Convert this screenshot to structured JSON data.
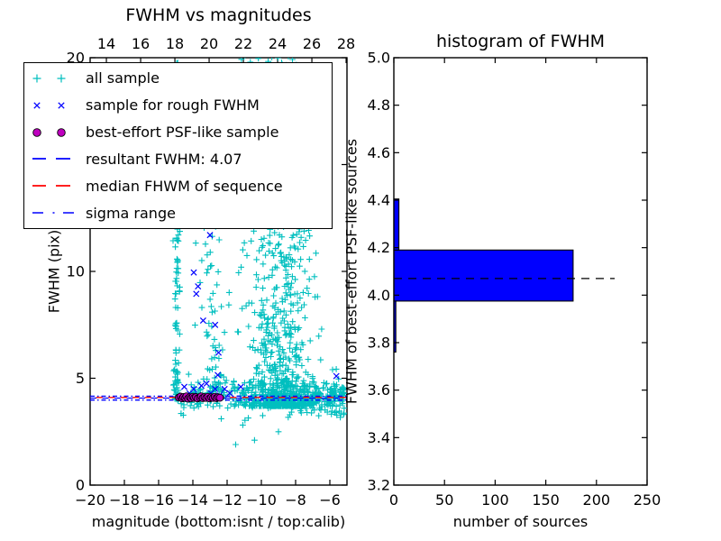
{
  "figure": {
    "background": "#ffffff"
  },
  "palette": {
    "cyan": "#00bfbf",
    "blue": "#0000ff",
    "magenta": "#bf00bf",
    "red": "#ff0000",
    "black": "#000000",
    "bar_fill": "#0000ff"
  },
  "chart_data": [
    {
      "type": "scatter",
      "title": "FWHM vs magnitudes",
      "xlabel": "magnitude (bottom:isnt / top:calib)",
      "ylabel": "FWHM (pix)",
      "xlim": [
        -20,
        -5
      ],
      "ylim": [
        0,
        20
      ],
      "x_bottom_ticks": [
        -20,
        -18,
        -16,
        -14,
        -12,
        -10,
        -8,
        -6
      ],
      "y_ticks": [
        0,
        5,
        10,
        15,
        20
      ],
      "top_axis": {
        "name": "calib magnitude",
        "xlim": [
          13.05,
          28.05
        ],
        "ticks": [
          14,
          16,
          18,
          20,
          22,
          24,
          26,
          28
        ]
      },
      "grid": false,
      "series": [
        {
          "name": "all sample",
          "marker": "plus",
          "color": "#00bfbf",
          "clusters": [
            {
              "n": 110,
              "x": {
                "dist": "normal",
                "mu": -14.95,
                "sigma": 0.1
              },
              "y": {
                "dist": "power",
                "min": 3.95,
                "max": 20,
                "exp": 1.7
              }
            },
            {
              "n": 60,
              "x": {
                "dist": "normal",
                "mu": -13.0,
                "sigma": 0.45
              },
              "y": {
                "dist": "power",
                "min": 4.2,
                "max": 13,
                "exp": 1.4
              }
            },
            {
              "n": 380,
              "x": {
                "dist": "rpower",
                "min": -15.05,
                "max": -5.15,
                "exp": 1.4
              },
              "y": {
                "dist": "normal",
                "mu": 4.2,
                "sigma": 0.38
              }
            },
            {
              "n": 780,
              "x": {
                "dist": "normal",
                "mu": -8.8,
                "sigma": 1.0
              },
              "y": {
                "dist": "power",
                "min": 3.7,
                "max": 20,
                "exp": 2.8
              }
            },
            {
              "n": 45,
              "x": {
                "dist": "normal",
                "mu": -9.2,
                "sigma": 1.4
              },
              "y": {
                "dist": "uniform",
                "min": 11,
                "max": 19.5
              }
            },
            {
              "n": 22,
              "x": {
                "dist": "uniform",
                "min": -11.3,
                "max": -7.8
              },
              "y": {
                "dist": "uniform",
                "min": 19.4,
                "max": 20.4
              }
            },
            {
              "n": 20,
              "x": {
                "dist": "uniform",
                "min": -11.6,
                "max": -5.3
              },
              "y": {
                "dist": "uniform",
                "min": 2.8,
                "max": 3.75
              }
            }
          ],
          "extra_points": [
            [
              -11.5,
              1.9
            ],
            [
              -10.4,
              2.1
            ],
            [
              -9.0,
              2.5
            ]
          ]
        },
        {
          "name": "sample for rough FWHM",
          "marker": "x",
          "color": "#0000ff",
          "points": [
            [
              -14.5,
              4.6
            ],
            [
              -14.2,
              4.3
            ],
            [
              -13.95,
              4.5
            ],
            [
              -13.7,
              4.2
            ],
            [
              -13.5,
              4.65
            ],
            [
              -13.2,
              4.75
            ],
            [
              -12.95,
              4.3
            ],
            [
              -12.7,
              4.5
            ],
            [
              -12.45,
              4.2
            ],
            [
              -12.15,
              4.5
            ],
            [
              -11.85,
              4.3
            ],
            [
              -11.2,
              4.6
            ],
            [
              -12.55,
              5.15
            ],
            [
              -12.5,
              6.2
            ],
            [
              -13.4,
              7.7
            ],
            [
              -12.7,
              7.5
            ],
            [
              -13.8,
              8.95
            ],
            [
              -13.95,
              9.95
            ],
            [
              -13.7,
              9.3
            ],
            [
              -13.0,
              11.7
            ],
            [
              -5.62,
              5.1
            ]
          ]
        },
        {
          "name": "best-effort PSF-like sample",
          "marker": "circle",
          "color": "#bf00bf",
          "points": [
            [
              -14.82,
              4.1
            ],
            [
              -14.72,
              4.14
            ],
            [
              -14.62,
              4.06
            ],
            [
              -14.55,
              4.12
            ],
            [
              -14.45,
              4.08
            ],
            [
              -14.38,
              4.15
            ],
            [
              -14.28,
              4.05
            ],
            [
              -14.18,
              4.11
            ],
            [
              -14.1,
              4.07
            ],
            [
              -14.0,
              4.13
            ],
            [
              -13.92,
              4.08
            ],
            [
              -13.82,
              4.12
            ],
            [
              -13.72,
              4.06
            ],
            [
              -13.6,
              4.1
            ],
            [
              -13.52,
              4.15
            ],
            [
              -13.42,
              4.07
            ],
            [
              -13.32,
              4.12
            ],
            [
              -13.22,
              4.08
            ],
            [
              -13.12,
              4.13
            ],
            [
              -13.02,
              4.06
            ],
            [
              -12.92,
              4.11
            ],
            [
              -12.82,
              4.08
            ],
            [
              -12.72,
              4.13
            ],
            [
              -12.62,
              4.07
            ],
            [
              -12.52,
              4.11
            ],
            [
              -12.42,
              4.09
            ]
          ]
        }
      ],
      "lines": [
        {
          "name": "resultant FWHM",
          "value": 4.07,
          "style": "dashed",
          "color": "#0000ff"
        },
        {
          "name": "median FHWM of sequence",
          "value": 4.1,
          "style": "dashed",
          "color": "#ff0000"
        },
        {
          "name": "sigma range lower",
          "value": 3.98,
          "style": "dashdot",
          "color": "#0000ff"
        },
        {
          "name": "sigma range upper",
          "value": 4.16,
          "style": "dashdot",
          "color": "#0000ff"
        }
      ],
      "legend": {
        "position": "upper left",
        "items": [
          {
            "label": "all sample",
            "swatch": "plus-pair",
            "color": "#00bfbf"
          },
          {
            "label": "sample for rough FWHM",
            "swatch": "x-pair",
            "color": "#0000ff"
          },
          {
            "label": "best-effort PSF-like sample",
            "swatch": "circle-pair",
            "color": "#bf00bf"
          },
          {
            "label": "resultant FWHM: 4.07",
            "swatch": "dashed",
            "color": "#0000ff"
          },
          {
            "label": "median FHWM of sequence",
            "swatch": "dashed",
            "color": "#ff0000"
          },
          {
            "label": "sigma range",
            "swatch": "dashdot",
            "color": "#0000ff"
          }
        ]
      }
    },
    {
      "type": "bar-horizontal",
      "title": "histogram of FWHM",
      "xlabel": "number of sources",
      "ylabel": "FWHM of best-effort PSF-like sources",
      "xlim": [
        0,
        250
      ],
      "ylim": [
        3.2,
        5.0
      ],
      "x_ticks": [
        0,
        50,
        100,
        150,
        200,
        250
      ],
      "y_ticks": [
        3.2,
        3.4,
        3.6,
        3.8,
        4.0,
        4.2,
        4.4,
        4.6,
        4.8,
        5.0
      ],
      "bar_color": "#0000ff",
      "bins": [
        {
          "y0": 3.76,
          "y1": 3.975,
          "count": 2
        },
        {
          "y0": 3.975,
          "y1": 4.19,
          "count": 177
        },
        {
          "y0": 4.19,
          "y1": 4.405,
          "count": 5
        }
      ],
      "median_line": {
        "value": 4.07,
        "x_start": 0,
        "x_end": 218,
        "style": "dashed",
        "color": "#000000"
      }
    }
  ]
}
